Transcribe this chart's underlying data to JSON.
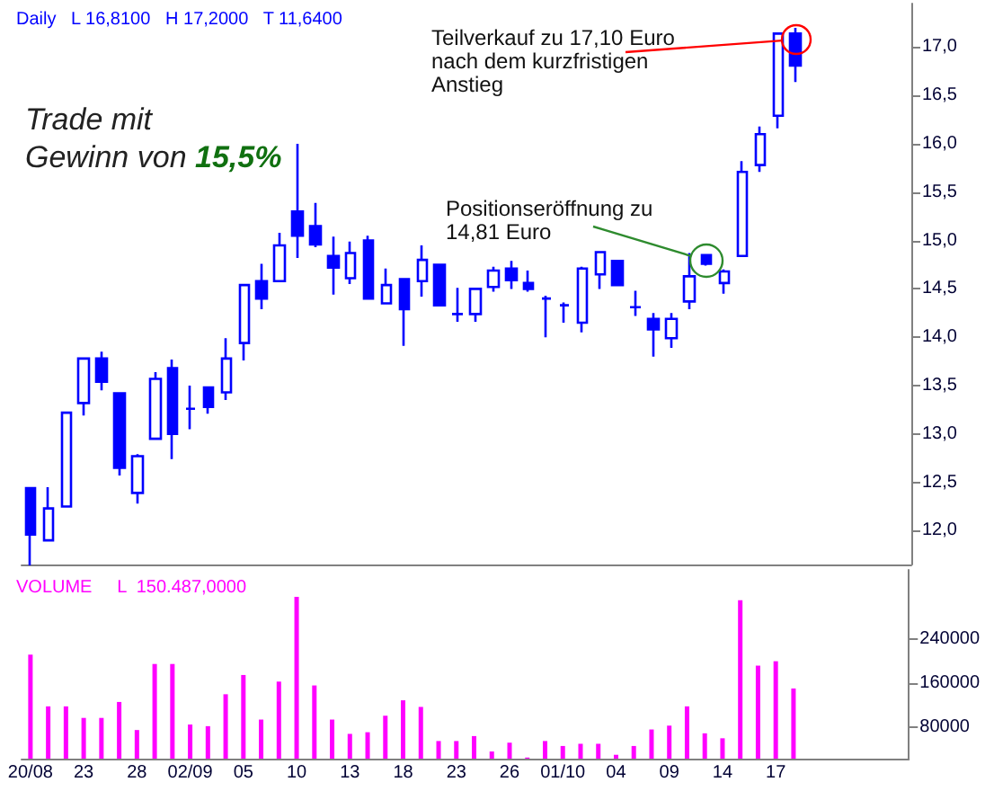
{
  "chart_data": [
    {
      "type": "candlestick",
      "title": "Daily   L 16,8100   H 17,2000   T 11,6400",
      "color": "#0000ff",
      "categories": [
        null,
        null,
        null,
        null,
        null,
        null,
        null,
        null,
        null,
        null,
        null,
        null,
        null,
        null,
        null,
        null,
        null,
        null,
        null,
        null,
        null,
        null,
        null,
        null,
        null,
        null,
        null,
        null,
        null,
        null,
        null,
        null,
        null,
        null,
        null,
        null,
        null,
        null,
        null,
        null,
        null,
        null,
        null,
        null,
        null,
        null,
        null,
        null,
        null,
        null
      ],
      "ohlc": [
        [
          12.44,
          12.44,
          11.64,
          11.96
        ],
        [
          11.9,
          12.45,
          11.9,
          12.23
        ],
        [
          12.25,
          13.22,
          12.25,
          13.22
        ],
        [
          13.32,
          13.78,
          13.19,
          13.78
        ],
        [
          13.78,
          13.85,
          13.45,
          13.54
        ],
        [
          13.42,
          13.42,
          12.57,
          12.65
        ],
        [
          12.39,
          12.79,
          12.28,
          12.77
        ],
        [
          12.95,
          13.64,
          12.95,
          13.57
        ],
        [
          13.68,
          13.77,
          12.74,
          13.0
        ],
        [
          13.26,
          13.5,
          13.05,
          13.26
        ],
        [
          13.48,
          13.48,
          13.21,
          13.28
        ],
        [
          13.43,
          13.99,
          13.35,
          13.78
        ],
        [
          13.94,
          14.54,
          13.76,
          14.54
        ],
        [
          14.58,
          14.76,
          14.29,
          14.4
        ],
        [
          14.58,
          15.08,
          14.58,
          14.95
        ],
        [
          15.3,
          16.0,
          14.82,
          15.05
        ],
        [
          15.15,
          15.39,
          14.93,
          14.96
        ],
        [
          14.84,
          15.04,
          14.44,
          14.72
        ],
        [
          14.61,
          14.99,
          14.55,
          14.87
        ],
        [
          15.0,
          15.05,
          14.4,
          14.4
        ],
        [
          14.35,
          14.71,
          14.35,
          14.54
        ],
        [
          14.6,
          14.6,
          13.91,
          14.29
        ],
        [
          14.58,
          14.95,
          14.42,
          14.8
        ],
        [
          14.75,
          14.75,
          14.33,
          14.33
        ],
        [
          14.24,
          14.51,
          14.16,
          14.24
        ],
        [
          14.24,
          14.5,
          14.16,
          14.5
        ],
        [
          14.52,
          14.73,
          14.47,
          14.69
        ],
        [
          14.71,
          14.79,
          14.5,
          14.59
        ],
        [
          14.56,
          14.69,
          14.47,
          14.5
        ],
        [
          14.4,
          14.43,
          14.0,
          14.4
        ],
        [
          14.33,
          14.36,
          14.15,
          14.33
        ],
        [
          14.15,
          14.73,
          14.05,
          14.71
        ],
        [
          14.65,
          14.88,
          14.5,
          14.88
        ],
        [
          14.79,
          14.79,
          14.54,
          14.54
        ],
        [
          14.31,
          14.48,
          14.22,
          14.31
        ],
        [
          14.19,
          14.25,
          13.8,
          14.08
        ],
        [
          13.99,
          14.25,
          13.89,
          14.19
        ],
        [
          14.37,
          14.87,
          14.29,
          14.63
        ],
        [
          14.85,
          14.85,
          14.74,
          14.76
        ],
        [
          14.56,
          14.7,
          14.45,
          14.68
        ],
        [
          14.84,
          15.82,
          14.84,
          15.71
        ],
        [
          15.78,
          16.18,
          15.71,
          16.1
        ],
        [
          16.29,
          17.14,
          16.16,
          17.14
        ],
        [
          17.14,
          17.2,
          16.64,
          16.81
        ],
        null,
        null,
        null,
        null,
        null,
        null
      ],
      "ylim": [
        11.65,
        17.45
      ],
      "yticks": [
        {
          "value": 12,
          "label": "12,0"
        },
        {
          "value": 12.5,
          "label": "12,5"
        },
        {
          "value": 13,
          "label": "13,0"
        },
        {
          "value": 13.5,
          "label": "13,5"
        },
        {
          "value": 14,
          "label": "14,0"
        },
        {
          "value": 14.5,
          "label": "14,5"
        },
        {
          "value": 15,
          "label": "15,0"
        },
        {
          "value": 15.5,
          "label": "15,5"
        },
        {
          "value": 16,
          "label": "16,0"
        },
        {
          "value": 16.5,
          "label": "16,5"
        },
        {
          "value": 17,
          "label": "17,0"
        }
      ],
      "tick_labels": "y",
      "annotations": [
        "Trade mit Gewinn von 15,5%",
        "Teilverkauf zu 17,10 Euro nach dem kurzfristigen Anstieg",
        "Positionseröffnung zu 14,81 Euro"
      ]
    },
    {
      "type": "bar",
      "title": "VOLUME     L  150.487,0000",
      "color": "#ff00ff",
      "categories": [
        "20/08",
        null,
        null,
        "23",
        null,
        null,
        "28",
        null,
        null,
        "02/09",
        null,
        null,
        "05",
        null,
        null,
        "10",
        null,
        null,
        "13",
        null,
        null,
        "18",
        null,
        null,
        "23",
        null,
        null,
        "26",
        null,
        null,
        "01/10",
        null,
        null,
        "04",
        null,
        null,
        "09",
        null,
        null,
        "14",
        null,
        null,
        "17",
        null,
        null,
        null,
        null,
        null,
        null,
        null
      ],
      "values": [
        212000,
        118000,
        118000,
        97000,
        97000,
        126000,
        75000,
        195000,
        195000,
        85000,
        82000,
        140000,
        175000,
        94000,
        163000,
        317000,
        156000,
        94000,
        68000,
        71000,
        101000,
        129000,
        117000,
        55000,
        55000,
        64000,
        36000,
        52000,
        25000,
        55000,
        46000,
        50000,
        50000,
        30000,
        46000,
        76000,
        83000,
        118000,
        69000,
        60000,
        311000,
        192000,
        200000,
        150487,
        null,
        null,
        null,
        null,
        null,
        null
      ],
      "ylim": [
        23000,
        366000
      ],
      "yticks": [
        80000,
        160000,
        240000
      ]
    }
  ]
}
